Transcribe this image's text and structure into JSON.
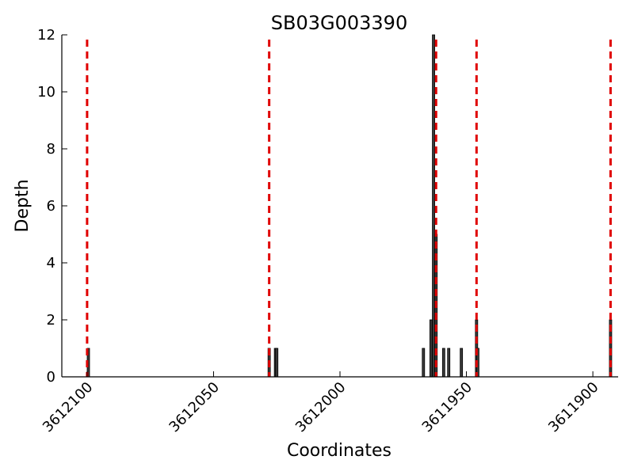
{
  "chart_data": {
    "type": "bar",
    "title": "SB03G003390",
    "xlabel": "Coordinates",
    "ylabel": "Depth",
    "x_reversed": true,
    "xlim": [
      3612110,
      3611890
    ],
    "ylim": [
      0,
      12
    ],
    "yticks": [
      0,
      2,
      4,
      6,
      8,
      10,
      12
    ],
    "xticks": [
      3612100,
      3612050,
      3612000,
      3611950,
      3611900
    ],
    "grid": false,
    "bar_color": "#3a3a3a",
    "bar_edge_color": "#000000",
    "vline_color": "#e00000",
    "vlines": [
      3612100,
      3612028,
      3611962,
      3611946,
      3611893
    ],
    "bars": [
      {
        "x": 3612099.5,
        "value": 1
      },
      {
        "x": 3612028.0,
        "value": 1
      },
      {
        "x": 3612025.5,
        "value": 1
      },
      {
        "x": 3612025.0,
        "value": 1
      },
      {
        "x": 3611967.0,
        "value": 1
      },
      {
        "x": 3611964.0,
        "value": 2
      },
      {
        "x": 3611963.0,
        "value": 12
      },
      {
        "x": 3611962.0,
        "value": 5
      },
      {
        "x": 3611959.0,
        "value": 1
      },
      {
        "x": 3611957.0,
        "value": 1
      },
      {
        "x": 3611952.0,
        "value": 1
      },
      {
        "x": 3611946.0,
        "value": 2
      },
      {
        "x": 3611945.5,
        "value": 1
      },
      {
        "x": 3611893.0,
        "value": 2
      }
    ]
  }
}
